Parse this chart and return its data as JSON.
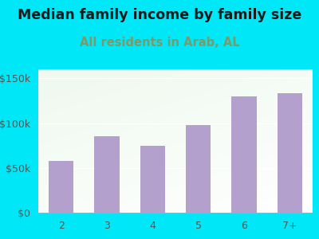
{
  "title": "Median family income by family size",
  "subtitle": "All residents in Arab, AL",
  "categories": [
    "2",
    "3",
    "4",
    "5",
    "6",
    "7+"
  ],
  "values": [
    58000,
    85000,
    75000,
    98000,
    130000,
    133000
  ],
  "bar_color": "#b3a0cc",
  "title_color": "#1a1a1a",
  "subtitle_color": "#7a9a6a",
  "background_outer": "#00e8f8",
  "ylim": [
    0,
    160000
  ],
  "yticks": [
    0,
    50000,
    100000,
    150000
  ],
  "ytick_labels": [
    "$0",
    "$50k",
    "$100k",
    "$150k"
  ],
  "title_fontsize": 12.5,
  "subtitle_fontsize": 10.5,
  "tick_fontsize": 9,
  "bar_width": 0.55
}
